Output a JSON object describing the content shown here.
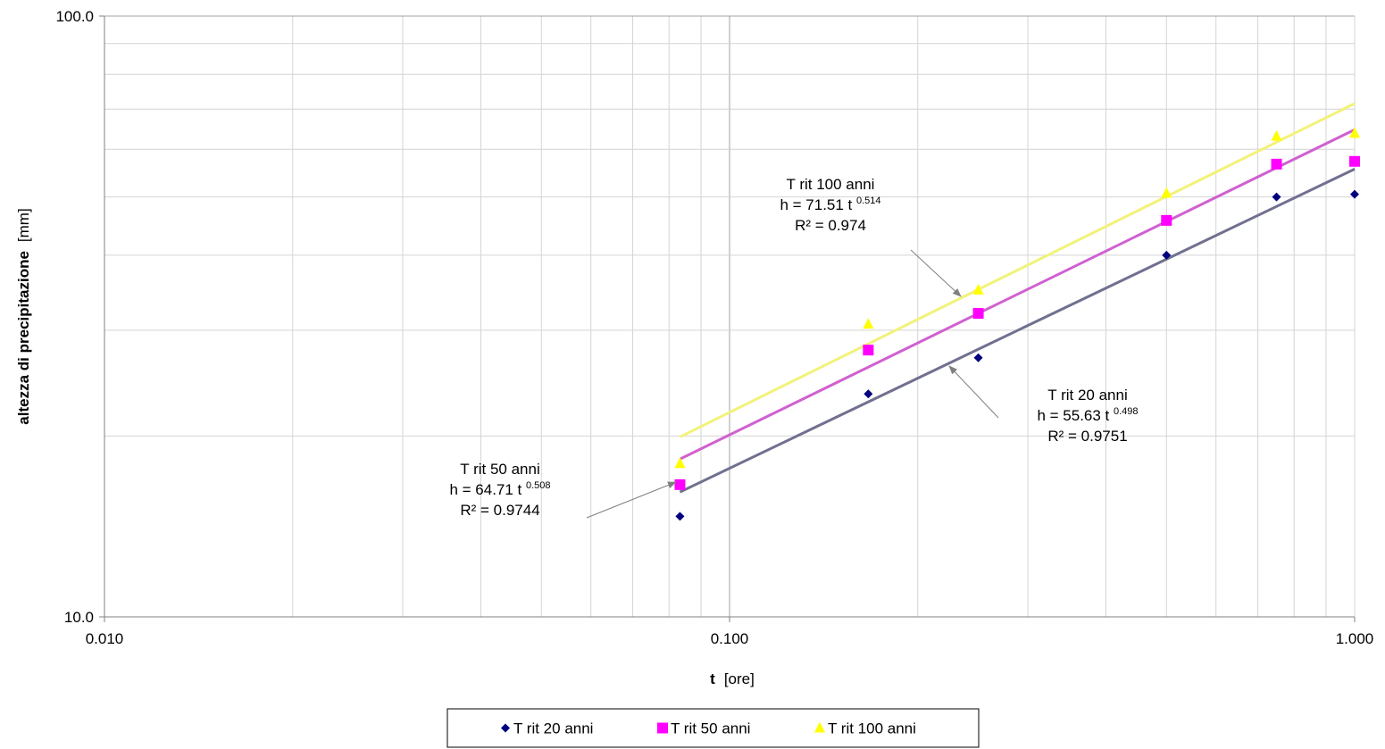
{
  "chart_data": {
    "type": "scatter",
    "x_scale": "log",
    "y_scale": "log",
    "xlim": [
      0.01,
      1.0
    ],
    "ylim": [
      10.0,
      100.0
    ],
    "grid": true,
    "legend_position": "bottom",
    "xlabel": {
      "bold": "t",
      "normal": "[ore]"
    },
    "ylabel": {
      "bold": "altezza di precipitazione",
      "normal": "[mm]"
    },
    "x_ticks": [
      {
        "value": 0.01,
        "label": "0.010"
      },
      {
        "value": 0.1,
        "label": "0.100"
      },
      {
        "value": 1.0,
        "label": "1.000"
      }
    ],
    "y_ticks": [
      {
        "value": 10.0,
        "label": "10.0"
      },
      {
        "value": 100.0,
        "label": "100.0"
      }
    ],
    "x": [
      0.0833,
      0.1667,
      0.25,
      0.5,
      0.75,
      1.0
    ],
    "series": [
      {
        "name": "T rit 20 anni",
        "marker": "diamond",
        "color": "#000080",
        "trend_color": "#707090",
        "values": [
          14.7,
          23.5,
          27.0,
          40.0,
          50.0,
          50.5
        ],
        "trend": {
          "a": 55.63,
          "b": 0.498
        }
      },
      {
        "name": "T rit 50 anni",
        "marker": "square",
        "color": "#FF00FF",
        "trend_color": "#D060D0",
        "values": [
          16.6,
          27.8,
          32.0,
          45.7,
          56.7,
          57.3
        ],
        "trend": {
          "a": 64.71,
          "b": 0.508
        }
      },
      {
        "name": "T rit 100 anni",
        "marker": "triangle",
        "color": "#FFFF00",
        "trend_color": "#F2F27A",
        "values": [
          18.0,
          30.7,
          35.0,
          50.7,
          63.1,
          63.8
        ],
        "trend": {
          "a": 71.51,
          "b": 0.514
        }
      }
    ],
    "annotations": [
      {
        "series": "T rit 100 anni",
        "title": "T rit 100 anni",
        "eq_prefix": "h = 71.51 t ",
        "eq_exp": "0.514",
        "r2": "R² = 0.974"
      },
      {
        "series": "T rit 20 anni",
        "title": "T rit  20 anni",
        "eq_prefix": "h = 55.63 t ",
        "eq_exp": "0.498",
        "r2": "R² = 0.9751"
      },
      {
        "series": "T rit 50 anni",
        "title": "T rit 50 anni",
        "eq_prefix": "h = 64.71 t ",
        "eq_exp": "0.508",
        "r2": "R² = 0.9744"
      }
    ]
  }
}
